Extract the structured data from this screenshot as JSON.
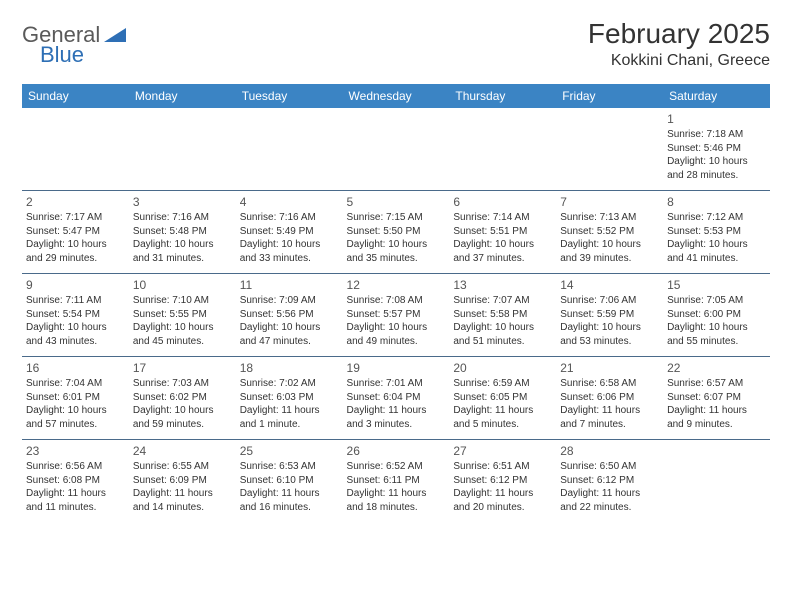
{
  "logo": {
    "general": "General",
    "blue": "Blue"
  },
  "title": "February 2025",
  "location": "Kokkini Chani, Greece",
  "colors": {
    "header_bg": "#3b84c4",
    "header_text": "#ffffff",
    "border": "#4a6a8a",
    "logo_gray": "#5a5a5a",
    "logo_blue": "#2e6fb5",
    "text": "#333333",
    "background": "#ffffff"
  },
  "calendar": {
    "type": "table",
    "day_headers": [
      "Sunday",
      "Monday",
      "Tuesday",
      "Wednesday",
      "Thursday",
      "Friday",
      "Saturday"
    ],
    "fontsize_header": 12,
    "fontsize_daynum": 12,
    "fontsize_info": 10,
    "weeks": [
      [
        null,
        null,
        null,
        null,
        null,
        null,
        {
          "n": "1",
          "sr": "7:18 AM",
          "ss": "5:46 PM",
          "dl": "10 hours and 28 minutes."
        }
      ],
      [
        {
          "n": "2",
          "sr": "7:17 AM",
          "ss": "5:47 PM",
          "dl": "10 hours and 29 minutes."
        },
        {
          "n": "3",
          "sr": "7:16 AM",
          "ss": "5:48 PM",
          "dl": "10 hours and 31 minutes."
        },
        {
          "n": "4",
          "sr": "7:16 AM",
          "ss": "5:49 PM",
          "dl": "10 hours and 33 minutes."
        },
        {
          "n": "5",
          "sr": "7:15 AM",
          "ss": "5:50 PM",
          "dl": "10 hours and 35 minutes."
        },
        {
          "n": "6",
          "sr": "7:14 AM",
          "ss": "5:51 PM",
          "dl": "10 hours and 37 minutes."
        },
        {
          "n": "7",
          "sr": "7:13 AM",
          "ss": "5:52 PM",
          "dl": "10 hours and 39 minutes."
        },
        {
          "n": "8",
          "sr": "7:12 AM",
          "ss": "5:53 PM",
          "dl": "10 hours and 41 minutes."
        }
      ],
      [
        {
          "n": "9",
          "sr": "7:11 AM",
          "ss": "5:54 PM",
          "dl": "10 hours and 43 minutes."
        },
        {
          "n": "10",
          "sr": "7:10 AM",
          "ss": "5:55 PM",
          "dl": "10 hours and 45 minutes."
        },
        {
          "n": "11",
          "sr": "7:09 AM",
          "ss": "5:56 PM",
          "dl": "10 hours and 47 minutes."
        },
        {
          "n": "12",
          "sr": "7:08 AM",
          "ss": "5:57 PM",
          "dl": "10 hours and 49 minutes."
        },
        {
          "n": "13",
          "sr": "7:07 AM",
          "ss": "5:58 PM",
          "dl": "10 hours and 51 minutes."
        },
        {
          "n": "14",
          "sr": "7:06 AM",
          "ss": "5:59 PM",
          "dl": "10 hours and 53 minutes."
        },
        {
          "n": "15",
          "sr": "7:05 AM",
          "ss": "6:00 PM",
          "dl": "10 hours and 55 minutes."
        }
      ],
      [
        {
          "n": "16",
          "sr": "7:04 AM",
          "ss": "6:01 PM",
          "dl": "10 hours and 57 minutes."
        },
        {
          "n": "17",
          "sr": "7:03 AM",
          "ss": "6:02 PM",
          "dl": "10 hours and 59 minutes."
        },
        {
          "n": "18",
          "sr": "7:02 AM",
          "ss": "6:03 PM",
          "dl": "11 hours and 1 minute."
        },
        {
          "n": "19",
          "sr": "7:01 AM",
          "ss": "6:04 PM",
          "dl": "11 hours and 3 minutes."
        },
        {
          "n": "20",
          "sr": "6:59 AM",
          "ss": "6:05 PM",
          "dl": "11 hours and 5 minutes."
        },
        {
          "n": "21",
          "sr": "6:58 AM",
          "ss": "6:06 PM",
          "dl": "11 hours and 7 minutes."
        },
        {
          "n": "22",
          "sr": "6:57 AM",
          "ss": "6:07 PM",
          "dl": "11 hours and 9 minutes."
        }
      ],
      [
        {
          "n": "23",
          "sr": "6:56 AM",
          "ss": "6:08 PM",
          "dl": "11 hours and 11 minutes."
        },
        {
          "n": "24",
          "sr": "6:55 AM",
          "ss": "6:09 PM",
          "dl": "11 hours and 14 minutes."
        },
        {
          "n": "25",
          "sr": "6:53 AM",
          "ss": "6:10 PM",
          "dl": "11 hours and 16 minutes."
        },
        {
          "n": "26",
          "sr": "6:52 AM",
          "ss": "6:11 PM",
          "dl": "11 hours and 18 minutes."
        },
        {
          "n": "27",
          "sr": "6:51 AM",
          "ss": "6:12 PM",
          "dl": "11 hours and 20 minutes."
        },
        {
          "n": "28",
          "sr": "6:50 AM",
          "ss": "6:12 PM",
          "dl": "11 hours and 22 minutes."
        },
        null
      ]
    ]
  },
  "labels": {
    "sunrise_prefix": "Sunrise: ",
    "sunset_prefix": "Sunset: ",
    "daylight_prefix": "Daylight: "
  }
}
